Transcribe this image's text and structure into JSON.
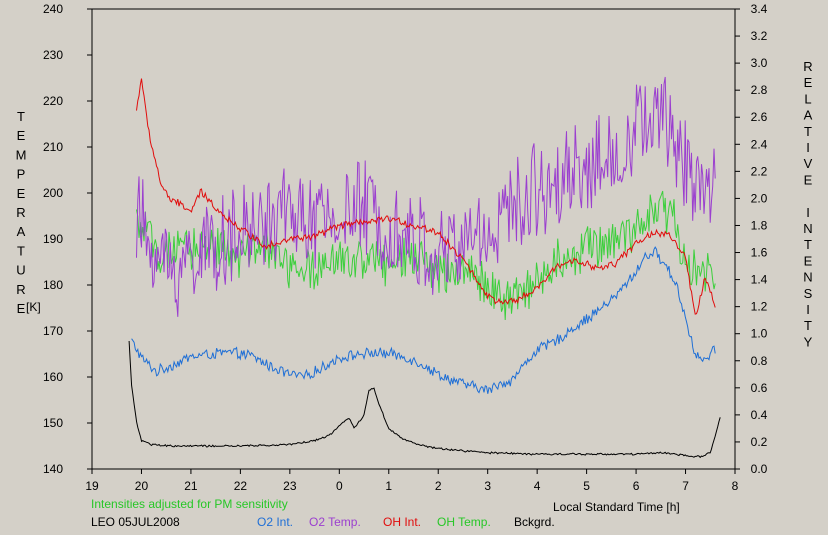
{
  "chart_data": {
    "type": "line",
    "title": "",
    "y_left": {
      "label": "TEMPERATURE",
      "unit_label": "[K]",
      "range": [
        140,
        240
      ],
      "ticks": [
        "240",
        "230",
        "220",
        "210",
        "200",
        "190",
        "180",
        "170",
        "160",
        "150",
        "140"
      ]
    },
    "y_right": {
      "label": "RELATIVE INTENSITY",
      "range": [
        0.0,
        3.4
      ],
      "ticks": [
        "3.4",
        "3.2",
        "3.0",
        "2.8",
        "2.6",
        "2.4",
        "2.2",
        "2.0",
        "1.8",
        "1.6",
        "1.4",
        "1.2",
        "1.0",
        "0.8",
        "0.6",
        "0.4",
        "0.2",
        "0.0"
      ]
    },
    "x_axis": {
      "label": "Local Standard Time [h]",
      "range": [
        19,
        32
      ],
      "tick_values": [
        19,
        20,
        21,
        22,
        23,
        24,
        25,
        26,
        27,
        28,
        29,
        30,
        31,
        32
      ],
      "tick_labels": [
        "19",
        "20",
        "21",
        "22",
        "23",
        "0",
        "1",
        "2",
        "3",
        "4",
        "5",
        "6",
        "7",
        "8"
      ]
    },
    "note": "Intensities adjusted for PM sensitivity",
    "station": "LEO 05JUL2008",
    "grid": false,
    "series": [
      {
        "name": "O2 Int.",
        "axis": "right",
        "color": "#1f6fd6",
        "noise": 0.045,
        "x": [
          19.8,
          20.0,
          20.3,
          20.7,
          21.0,
          21.4,
          21.8,
          22.2,
          22.6,
          23.0,
          23.3,
          23.6,
          24.0,
          24.4,
          24.8,
          25.2,
          25.6,
          26.0,
          26.4,
          26.8,
          27.0,
          27.2,
          27.5,
          27.8,
          28.0,
          28.4,
          28.8,
          29.2,
          29.6,
          30.0,
          30.2,
          30.4,
          30.6,
          30.8,
          31.0,
          31.2,
          31.4,
          31.6
        ],
        "y": [
          0.95,
          0.82,
          0.72,
          0.78,
          0.83,
          0.85,
          0.86,
          0.84,
          0.76,
          0.7,
          0.68,
          0.74,
          0.82,
          0.85,
          0.86,
          0.84,
          0.79,
          0.7,
          0.64,
          0.6,
          0.58,
          0.62,
          0.66,
          0.8,
          0.88,
          0.95,
          1.06,
          1.16,
          1.28,
          1.46,
          1.58,
          1.6,
          1.5,
          1.38,
          1.12,
          0.84,
          0.8,
          0.88
        ]
      },
      {
        "name": "O2 Temp.",
        "axis": "left",
        "color": "#9b3fcf",
        "noise": 12,
        "x": [
          19.9,
          20.2,
          20.6,
          21.0,
          21.5,
          22.0,
          22.5,
          23.0,
          23.5,
          24.0,
          24.5,
          25.0,
          25.5,
          26.0,
          26.5,
          27.0,
          27.5,
          28.0,
          28.5,
          29.0,
          29.5,
          30.0,
          30.3,
          30.6,
          31.0,
          31.4,
          31.6
        ],
        "y": [
          195,
          188,
          183,
          186,
          189,
          190,
          194,
          196,
          193,
          195,
          197,
          194,
          190,
          186,
          189,
          192,
          196,
          201,
          204,
          206,
          207,
          213,
          217,
          215,
          207,
          201,
          203
        ]
      },
      {
        "name": "OH Int.",
        "axis": "right",
        "color": "#e10c0c",
        "noise": 0.03,
        "x": [
          19.9,
          20.0,
          20.1,
          20.2,
          20.4,
          20.6,
          20.8,
          21.0,
          21.2,
          21.4,
          21.6,
          21.8,
          22.0,
          22.5,
          23.0,
          23.5,
          24.0,
          24.5,
          25.0,
          25.5,
          26.0,
          26.5,
          27.0,
          27.3,
          27.6,
          28.0,
          28.4,
          28.8,
          29.2,
          29.6,
          30.0,
          30.4,
          30.7,
          31.0,
          31.2,
          31.4,
          31.6
        ],
        "y": [
          2.65,
          2.9,
          2.6,
          2.4,
          2.1,
          1.98,
          1.96,
          1.9,
          2.05,
          1.97,
          1.9,
          1.83,
          1.78,
          1.65,
          1.7,
          1.72,
          1.8,
          1.82,
          1.85,
          1.8,
          1.75,
          1.55,
          1.28,
          1.22,
          1.25,
          1.33,
          1.5,
          1.55,
          1.48,
          1.52,
          1.67,
          1.75,
          1.72,
          1.56,
          1.12,
          1.42,
          1.2
        ]
      },
      {
        "name": "OH Temp.",
        "axis": "left",
        "color": "#3ccf3c",
        "noise": 5.5,
        "x": [
          19.9,
          20.2,
          20.6,
          21.0,
          21.5,
          22.0,
          22.5,
          23.0,
          23.5,
          24.0,
          24.5,
          25.0,
          25.5,
          26.0,
          26.5,
          27.0,
          27.3,
          27.6,
          28.0,
          28.5,
          29.0,
          29.5,
          30.0,
          30.3,
          30.5,
          30.8,
          31.0,
          31.3,
          31.6
        ],
        "y": [
          194,
          189,
          186,
          188,
          189,
          186,
          188,
          184,
          183,
          185,
          186,
          184,
          186,
          183,
          184,
          180,
          177,
          177,
          182,
          186,
          188,
          190,
          192,
          196,
          198,
          193,
          185,
          182,
          183
        ]
      },
      {
        "name": "Bckgrd.",
        "axis": "right",
        "color": "#000000",
        "noise": 0.008,
        "x": [
          19.75,
          19.8,
          19.9,
          20.0,
          20.2,
          20.6,
          21.0,
          22.0,
          23.0,
          23.5,
          23.8,
          24.0,
          24.2,
          24.3,
          24.5,
          24.6,
          24.7,
          24.8,
          25.0,
          25.3,
          25.6,
          26.0,
          27.0,
          28.0,
          29.0,
          30.0,
          30.5,
          31.0,
          31.3,
          31.5,
          31.7
        ],
        "y": [
          0.95,
          0.62,
          0.35,
          0.21,
          0.18,
          0.17,
          0.17,
          0.17,
          0.18,
          0.21,
          0.25,
          0.32,
          0.38,
          0.3,
          0.4,
          0.58,
          0.6,
          0.48,
          0.3,
          0.22,
          0.18,
          0.15,
          0.12,
          0.11,
          0.11,
          0.11,
          0.12,
          0.1,
          0.09,
          0.12,
          0.38
        ]
      }
    ]
  }
}
